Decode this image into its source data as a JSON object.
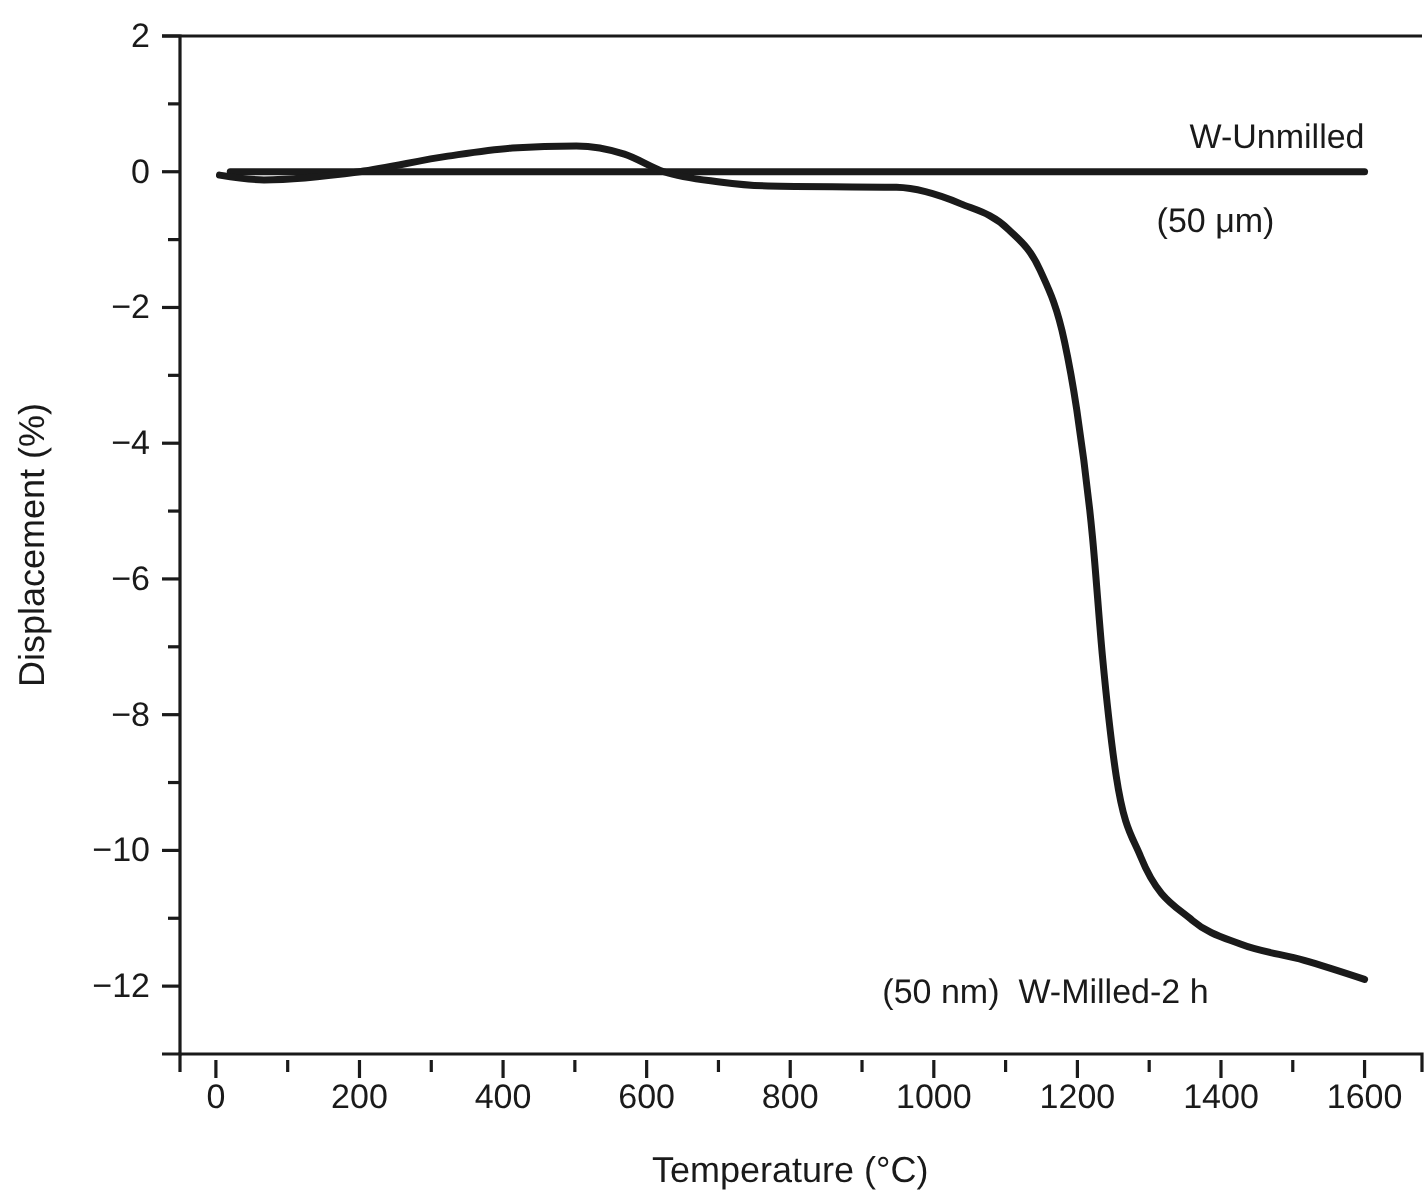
{
  "chart_data": {
    "type": "line",
    "xlabel": "Temperature (°C)",
    "ylabel": "Displacement (%)",
    "xlim": [
      -50,
      1680
    ],
    "ylim": [
      -13,
      2
    ],
    "xticks": [
      0,
      {
        "value": 100,
        "label": null
      },
      200,
      {
        "value": 300,
        "label": null
      },
      400,
      {
        "value": 500,
        "label": null
      },
      600,
      {
        "value": 700,
        "label": null
      },
      800,
      {
        "value": 900,
        "label": null
      },
      1000,
      {
        "value": 1100,
        "label": null
      },
      1200,
      {
        "value": 1300,
        "label": null
      },
      1400,
      {
        "value": 1500,
        "label": null
      },
      1600
    ],
    "yticks": [
      -12,
      {
        "value": -11,
        "label": null
      },
      -10,
      {
        "value": -9,
        "label": null
      },
      -8,
      {
        "value": -7,
        "label": null
      },
      -6,
      {
        "value": -5,
        "label": null
      },
      -4,
      {
        "value": -3,
        "label": null
      },
      -2,
      {
        "value": -1,
        "label": null
      },
      0,
      {
        "value": 1,
        "label": null
      },
      2
    ],
    "grid": false,
    "legend": false,
    "marker": "none",
    "line_style": "solid",
    "series": [
      {
        "name": "W-Unmilled",
        "color": "#1a1a1a",
        "x": [
          20,
          1600
        ],
        "values": [
          0,
          0
        ]
      },
      {
        "name": "W-Milled-2 h",
        "color": "#1a1a1a",
        "x": [
          5,
          67,
          200,
          323,
          413,
          502,
          569,
          624,
          702,
          769,
          948,
          1037,
          1104,
          1148,
          1182,
          1199,
          1221,
          1235,
          1254,
          1288,
          1360,
          1427,
          1516,
          1600
        ],
        "values": [
          -0.05,
          -0.12,
          0,
          0.23,
          0.35,
          0.38,
          0.26,
          0,
          -0.15,
          -0.21,
          -0.23,
          -0.47,
          -0.85,
          -1.45,
          -2.5,
          -3.5,
          -5.38,
          -7.15,
          -8.9,
          -10.09,
          -11.03,
          -11.38,
          -11.62,
          -11.9
        ]
      }
    ],
    "annotations": [
      "(50 μm)",
      "(50 nm)"
    ]
  }
}
